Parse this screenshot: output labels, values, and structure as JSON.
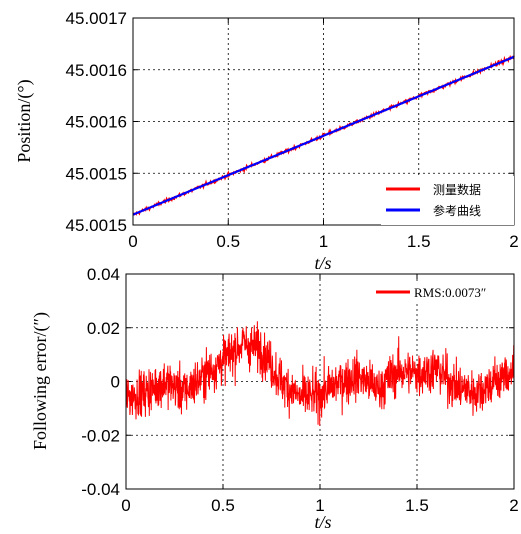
{
  "chart_data": [
    {
      "type": "line",
      "ylabel": "Position/(°)",
      "xlabel": "t/s",
      "xlim": [
        0,
        2
      ],
      "ylim": [
        45.0015,
        45.0017
      ],
      "x_ticks": [
        "0",
        "0.5",
        "1",
        "1.5",
        "2"
      ],
      "y_ticks": [
        "45.0015",
        "45.0015",
        "45.0016",
        "45.0016",
        "45.0017"
      ],
      "grid": true,
      "legend_position": "bottom-right",
      "series": [
        {
          "name": "测量数据",
          "color": "#ff0000",
          "x": [
            0,
            2
          ],
          "y": [
            45.00151,
            45.0016625
          ],
          "noise_sd": 1.2e-06
        },
        {
          "name": "参考曲线",
          "color": "#0000ff",
          "x": [
            0,
            2
          ],
          "y": [
            45.00151,
            45.0016625
          ]
        }
      ]
    },
    {
      "type": "line",
      "ylabel": "Following error/(″)",
      "xlabel": "t/s",
      "xlim": [
        0,
        2
      ],
      "ylim": [
        -0.04,
        0.04
      ],
      "x_ticks": [
        "0",
        "0.5",
        "1",
        "1.5",
        "2"
      ],
      "y_ticks": [
        "0.04",
        "0.02",
        "0",
        "-0.02",
        "-0.04"
      ],
      "grid": true,
      "legend_position": "top-right",
      "series": [
        {
          "name": "RMS:0.0073″",
          "color": "#ff0000",
          "noise_sd": 0.006,
          "trend": {
            "x": [
              0,
              0.1,
              0.2,
              0.3,
              0.4,
              0.5,
              0.6,
              0.7,
              0.8,
              0.9,
              1.0,
              1.1,
              1.2,
              1.3,
              1.4,
              1.5,
              1.6,
              1.7,
              1.8,
              1.9,
              2.0
            ],
            "y": [
              -0.006,
              -0.004,
              0.0,
              -0.004,
              0.002,
              0.008,
              0.014,
              0.012,
              0.0,
              -0.006,
              -0.005,
              0.0,
              0.002,
              -0.003,
              0.004,
              0.003,
              0.005,
              -0.002,
              -0.004,
              0.0,
              0.004
            ]
          }
        }
      ]
    }
  ]
}
